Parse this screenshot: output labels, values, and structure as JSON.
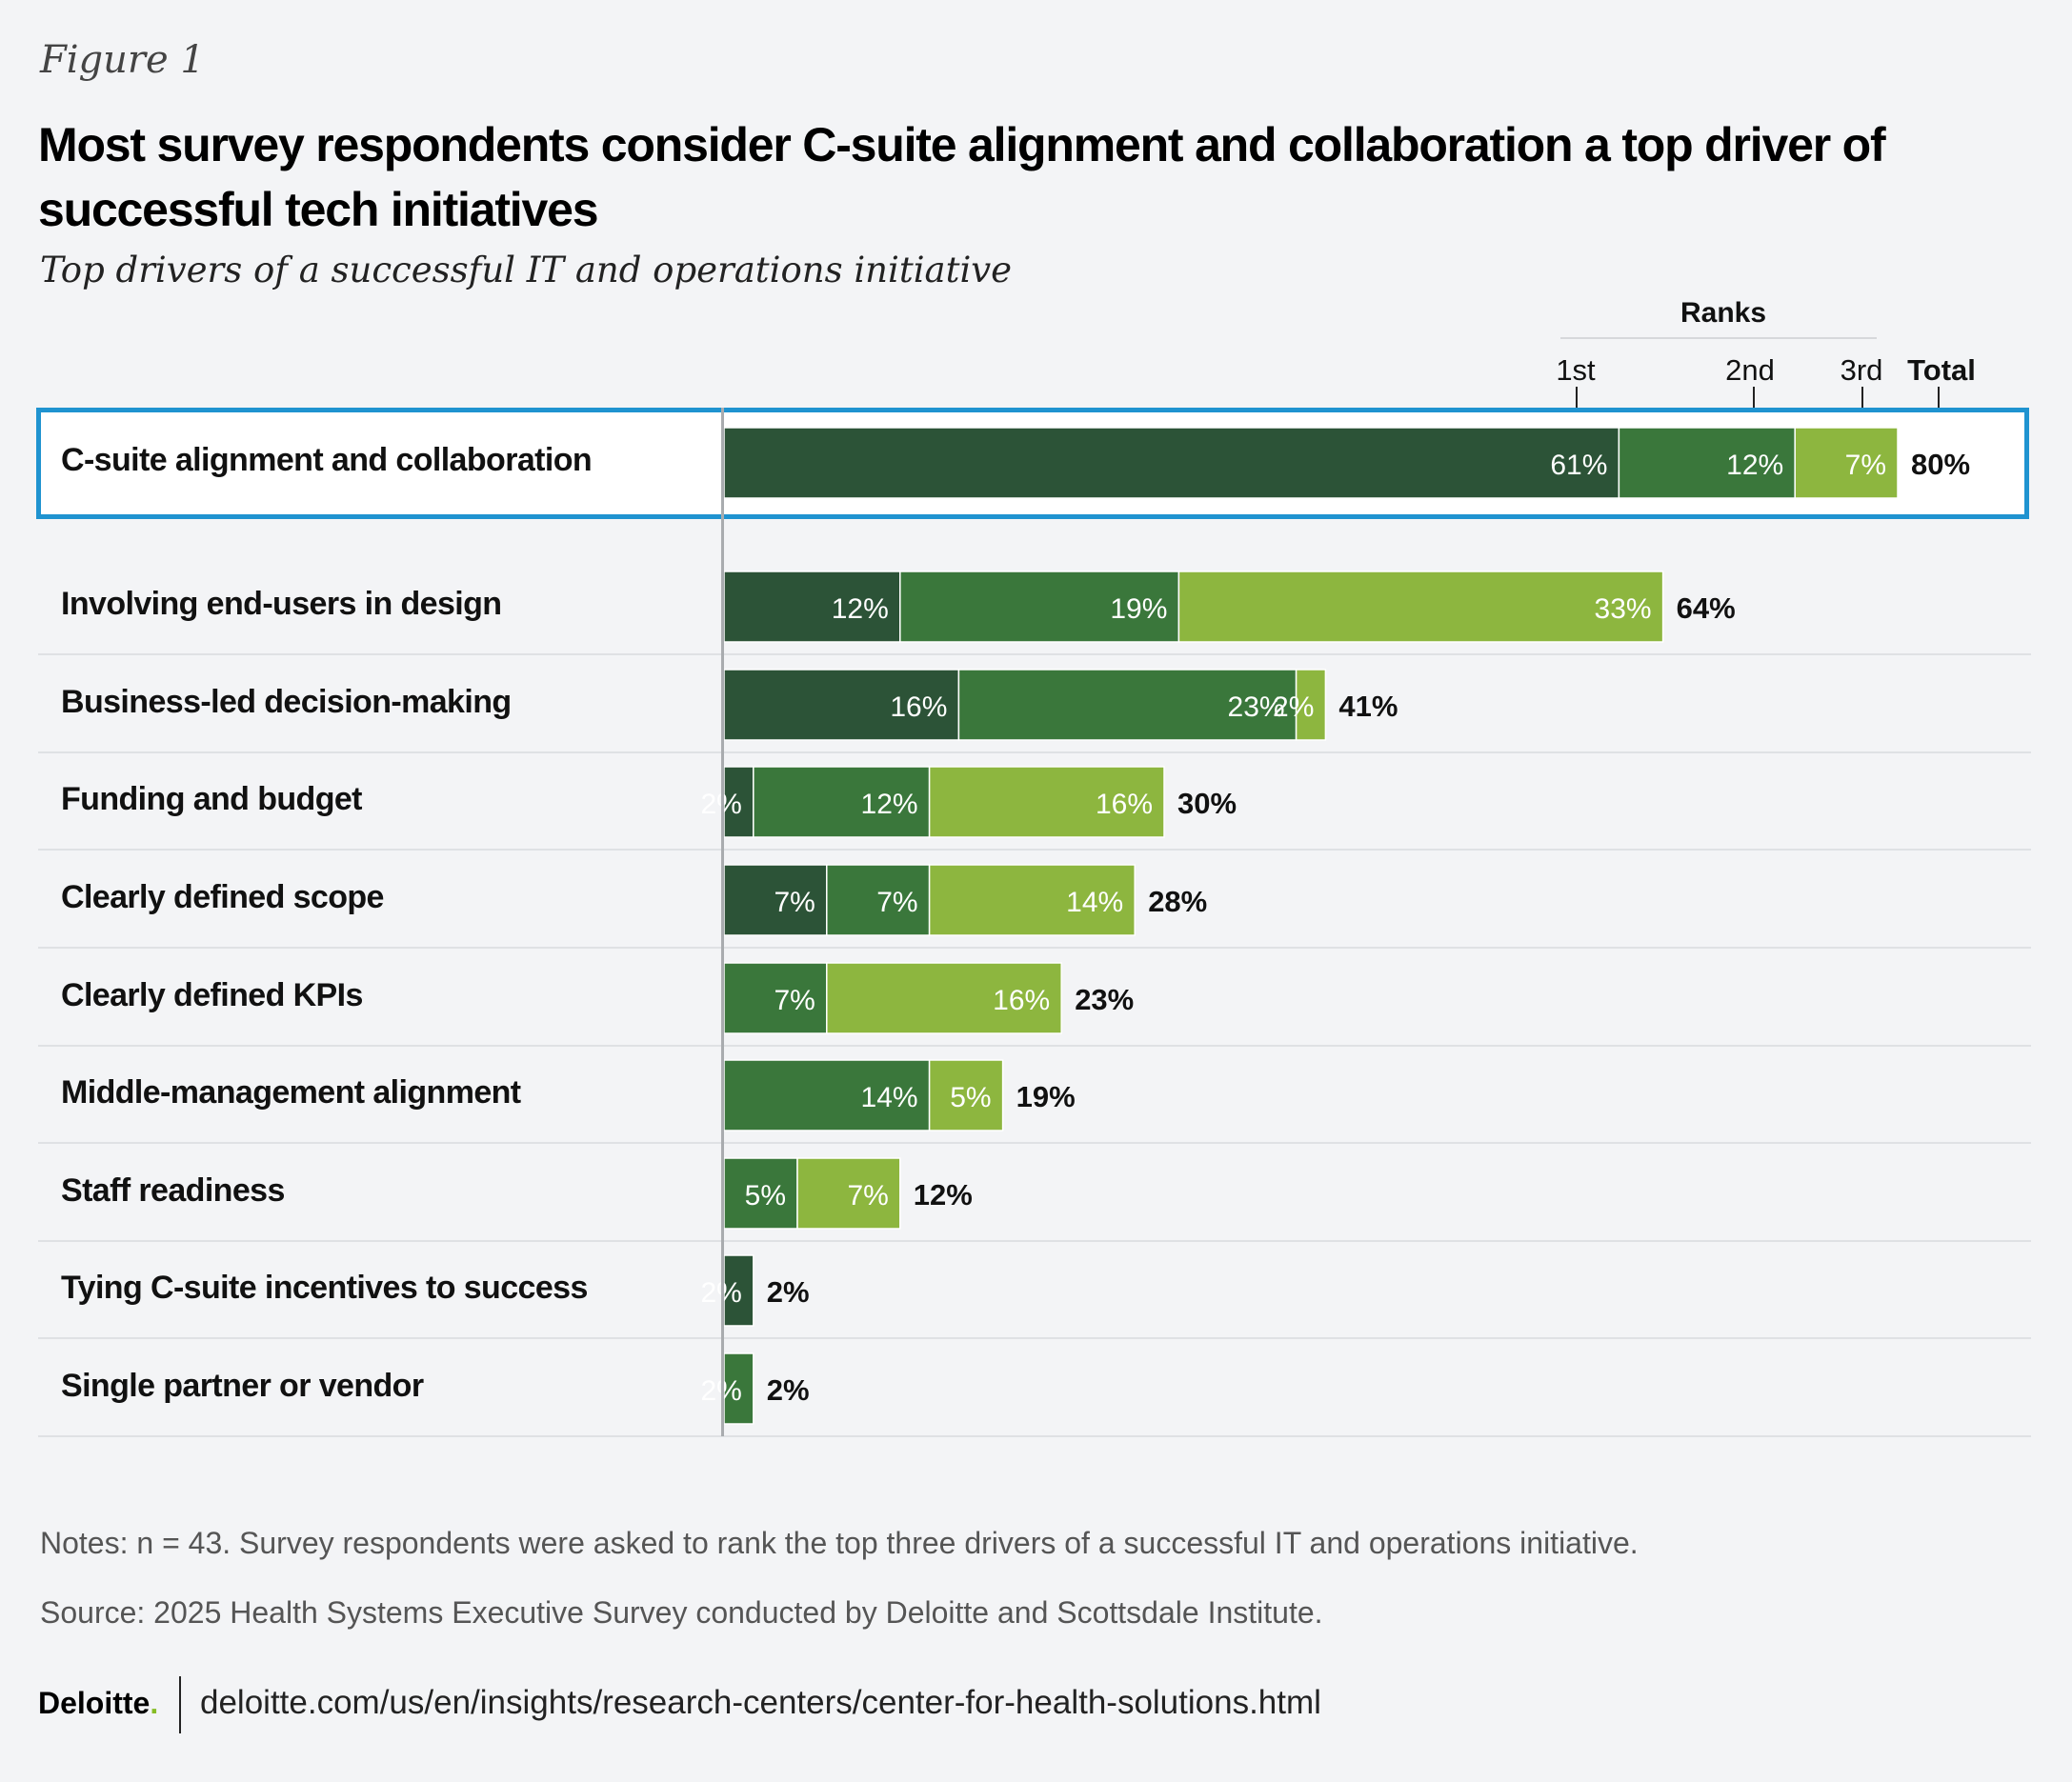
{
  "figure_label": "Figure 1",
  "title": "Most survey respondents consider C-suite alignment and collaboration a top driver of successful tech initiatives",
  "subtitle": "Top drivers of a successful IT and operations initiative",
  "header": {
    "ranks_label": "Ranks",
    "first": "1st",
    "second": "2nd",
    "third": "3rd",
    "total": "Total"
  },
  "chart_data": {
    "type": "bar",
    "orientation": "horizontal",
    "stacked": true,
    "categories": [
      "C-suite alignment and collaboration",
      "Involving end-users in design",
      "Business-led decision-making",
      "Funding and budget",
      "Clearly defined scope",
      "Clearly defined KPIs",
      "Middle-management alignment",
      "Staff readiness",
      "Tying C-suite incentives to success",
      "Single partner or vendor"
    ],
    "series": [
      {
        "name": "1st",
        "color": "#2c5337",
        "values": [
          61,
          12,
          16,
          2,
          7,
          0,
          0,
          0,
          2,
          0
        ]
      },
      {
        "name": "2nd",
        "color": "#3a773b",
        "values": [
          12,
          19,
          23,
          12,
          7,
          7,
          14,
          5,
          0,
          2
        ]
      },
      {
        "name": "3rd",
        "color": "#8db63f",
        "values": [
          7,
          33,
          2,
          16,
          14,
          16,
          5,
          7,
          0,
          0
        ]
      }
    ],
    "totals": [
      80,
      64,
      41,
      30,
      28,
      23,
      19,
      12,
      2,
      2
    ],
    "highlighted_category": "C-suite alignment and collaboration",
    "highlight_color": "#1f93d0",
    "xlim": [
      0,
      80
    ],
    "grid": false
  },
  "notes": "Notes: n = 43. Survey respondents were asked to rank the top three drivers of a successful IT and operations initiative.",
  "source": "Source: 2025 Health Systems Executive Survey conducted by Deloitte and Scottsdale Institute.",
  "footer": {
    "brand": "Deloitte",
    "brand_dot": ".",
    "url": "deloitte.com/us/en/insights/research-centers/center-for-health-solutions.html"
  }
}
